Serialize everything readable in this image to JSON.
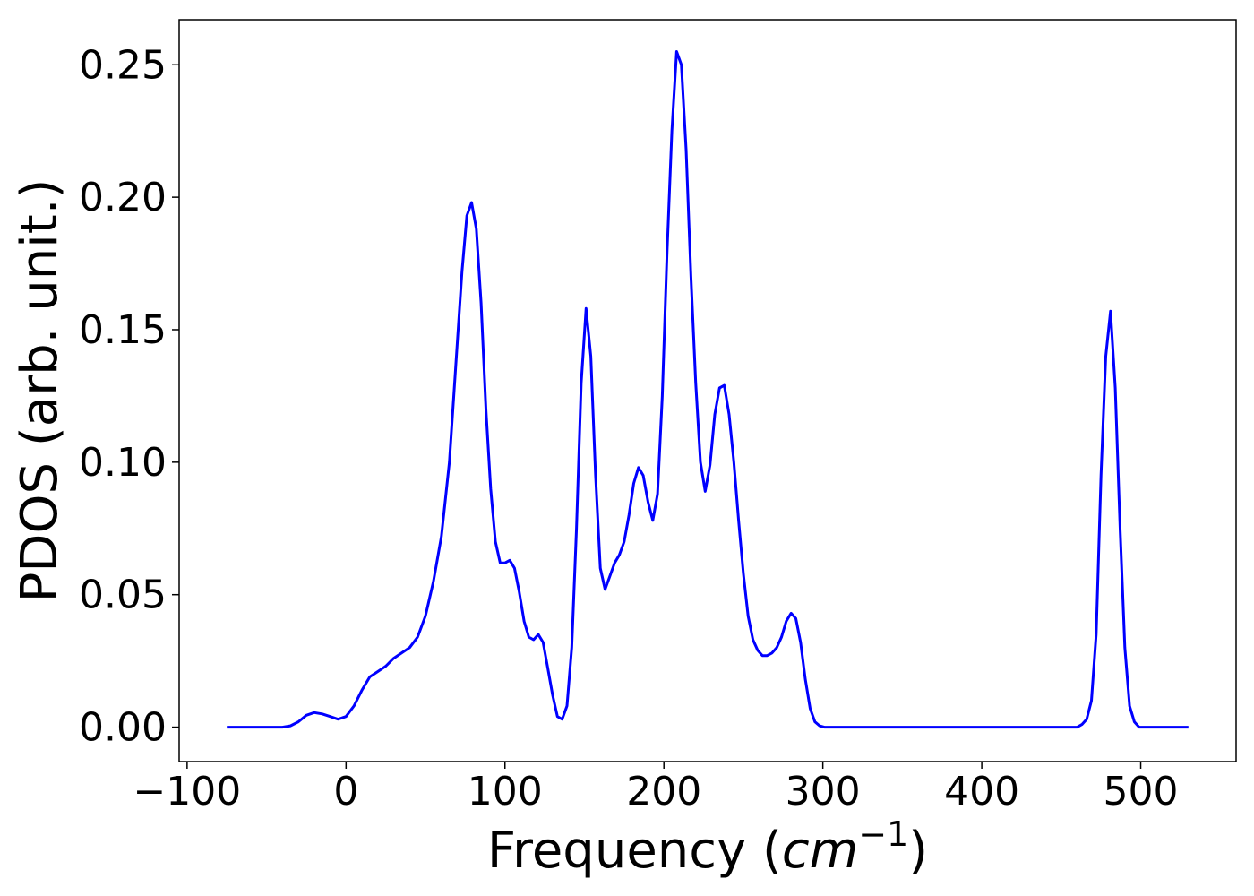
{
  "chart_data": {
    "type": "line",
    "title": "",
    "xlabel": "Frequency (",
    "xlabel_unit": "cm",
    "xlabel_exponent": "−1",
    "xlabel_close": ")",
    "ylabel": "PDOS (arb. unit.)",
    "xlim": [
      -105,
      560
    ],
    "ylim": [
      -0.013,
      0.267
    ],
    "xticks": [
      -100,
      0,
      100,
      200,
      300,
      400,
      500
    ],
    "xtick_labels": [
      "−100",
      "0",
      "100",
      "200",
      "300",
      "400",
      "500"
    ],
    "yticks": [
      0.0,
      0.05,
      0.1,
      0.15,
      0.2,
      0.25
    ],
    "ytick_labels": [
      "0.00",
      "0.05",
      "0.10",
      "0.15",
      "0.20",
      "0.25"
    ],
    "grid": false,
    "color": "#0000ff",
    "series": [
      {
        "x": [
          -75,
          -40,
          -35,
          -30,
          -25,
          -20,
          -15,
          -10,
          -5,
          0,
          5,
          10,
          15,
          20,
          25,
          30,
          35,
          40,
          45,
          50,
          55,
          60,
          65,
          70,
          73,
          76,
          79,
          82,
          85,
          88,
          91,
          94,
          97,
          100,
          103,
          106,
          109,
          112,
          115,
          118,
          121,
          124,
          127,
          130,
          133,
          136,
          139,
          142,
          145,
          148,
          151,
          154,
          157,
          160,
          163,
          166,
          169,
          172,
          175,
          178,
          181,
          184,
          187,
          190,
          193,
          196,
          199,
          202,
          205,
          208,
          211,
          214,
          217,
          220,
          223,
          226,
          229,
          232,
          235,
          238,
          241,
          244,
          247,
          250,
          253,
          256,
          259,
          262,
          265,
          268,
          271,
          274,
          277,
          280,
          283,
          286,
          289,
          292,
          295,
          298,
          301,
          304,
          307,
          310,
          460,
          463,
          466,
          469,
          472,
          475,
          478,
          481,
          484,
          487,
          490,
          493,
          496,
          499,
          502,
          530
        ],
        "y": [
          0.0,
          0.0,
          0.0005,
          0.002,
          0.0045,
          0.0055,
          0.005,
          0.004,
          0.003,
          0.004,
          0.008,
          0.014,
          0.019,
          0.021,
          0.023,
          0.026,
          0.028,
          0.03,
          0.034,
          0.042,
          0.055,
          0.072,
          0.1,
          0.145,
          0.172,
          0.193,
          0.198,
          0.188,
          0.16,
          0.12,
          0.09,
          0.07,
          0.062,
          0.062,
          0.063,
          0.06,
          0.051,
          0.04,
          0.034,
          0.033,
          0.035,
          0.032,
          0.022,
          0.012,
          0.004,
          0.003,
          0.008,
          0.03,
          0.075,
          0.13,
          0.158,
          0.14,
          0.095,
          0.06,
          0.052,
          0.057,
          0.062,
          0.065,
          0.07,
          0.08,
          0.092,
          0.098,
          0.095,
          0.085,
          0.078,
          0.088,
          0.125,
          0.18,
          0.225,
          0.255,
          0.25,
          0.218,
          0.17,
          0.13,
          0.1,
          0.089,
          0.099,
          0.118,
          0.128,
          0.129,
          0.118,
          0.1,
          0.078,
          0.058,
          0.042,
          0.033,
          0.029,
          0.027,
          0.027,
          0.028,
          0.03,
          0.034,
          0.04,
          0.043,
          0.041,
          0.032,
          0.018,
          0.007,
          0.002,
          0.0005,
          0.0,
          0.0,
          0.0,
          0.0,
          0.0,
          0.001,
          0.003,
          0.01,
          0.035,
          0.095,
          0.14,
          0.157,
          0.128,
          0.075,
          0.03,
          0.008,
          0.002,
          0.0,
          0.0,
          0.0
        ]
      }
    ]
  }
}
